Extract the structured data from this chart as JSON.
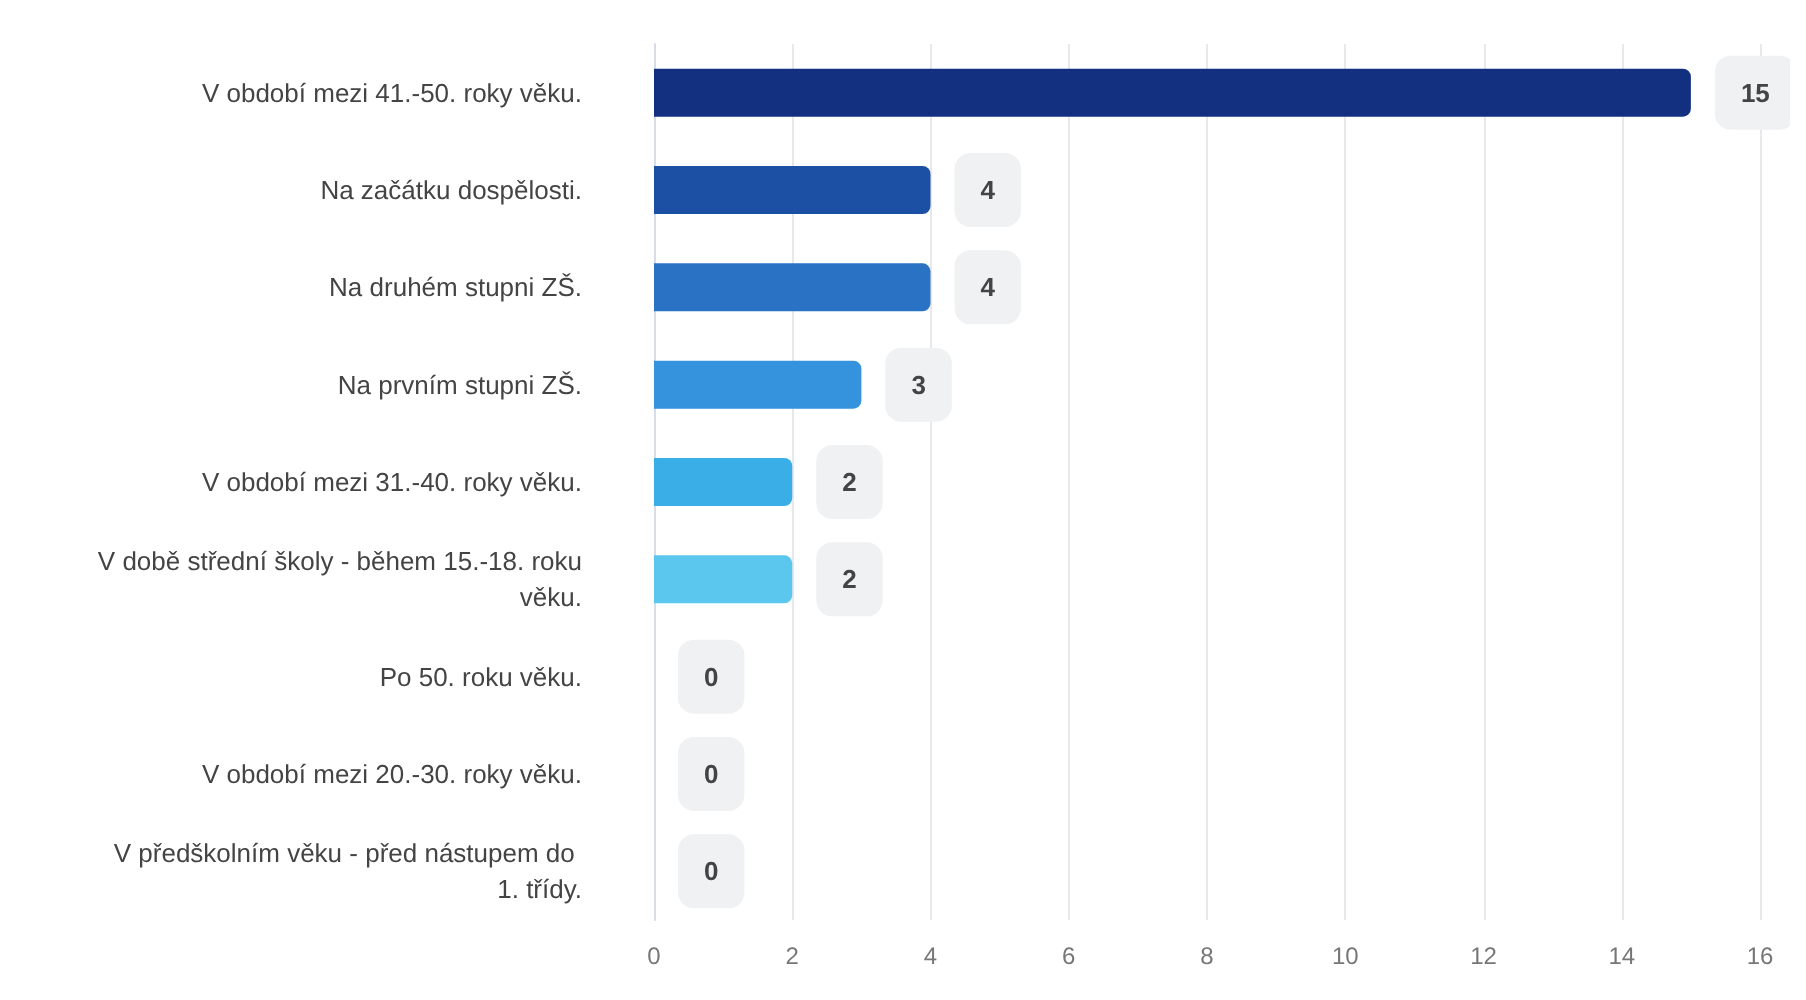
{
  "chart_data": {
    "type": "bar",
    "orientation": "horizontal",
    "categories": [
      "V období mezi 41.-50. roky věku.",
      "Na začátku dospělosti.",
      "Na druhém stupni ZŠ.",
      "Na prvním stupni ZŠ.",
      "V období mezi 31.-40. roky věku.",
      "V době střední školy - během 15.-18. roku věku.",
      "Po 50. roku věku.",
      "V období mezi 20.-30. roky věku.",
      "V předškolním věku - před nástupem do 1. třídy."
    ],
    "values": [
      15,
      4,
      4,
      3,
      2,
      2,
      0,
      0,
      0
    ],
    "colors": [
      "#12307f",
      "#1c50a5",
      "#2a72c4",
      "#3592dc",
      "#3aaee6",
      "#5bc6ee",
      "#5bc6ee",
      "#5bc6ee",
      "#5bc6ee"
    ],
    "xlim": [
      0,
      16
    ],
    "xticks": [
      0,
      2,
      4,
      6,
      8,
      10,
      12,
      14,
      16
    ],
    "grid": "x",
    "data_labels": true
  }
}
